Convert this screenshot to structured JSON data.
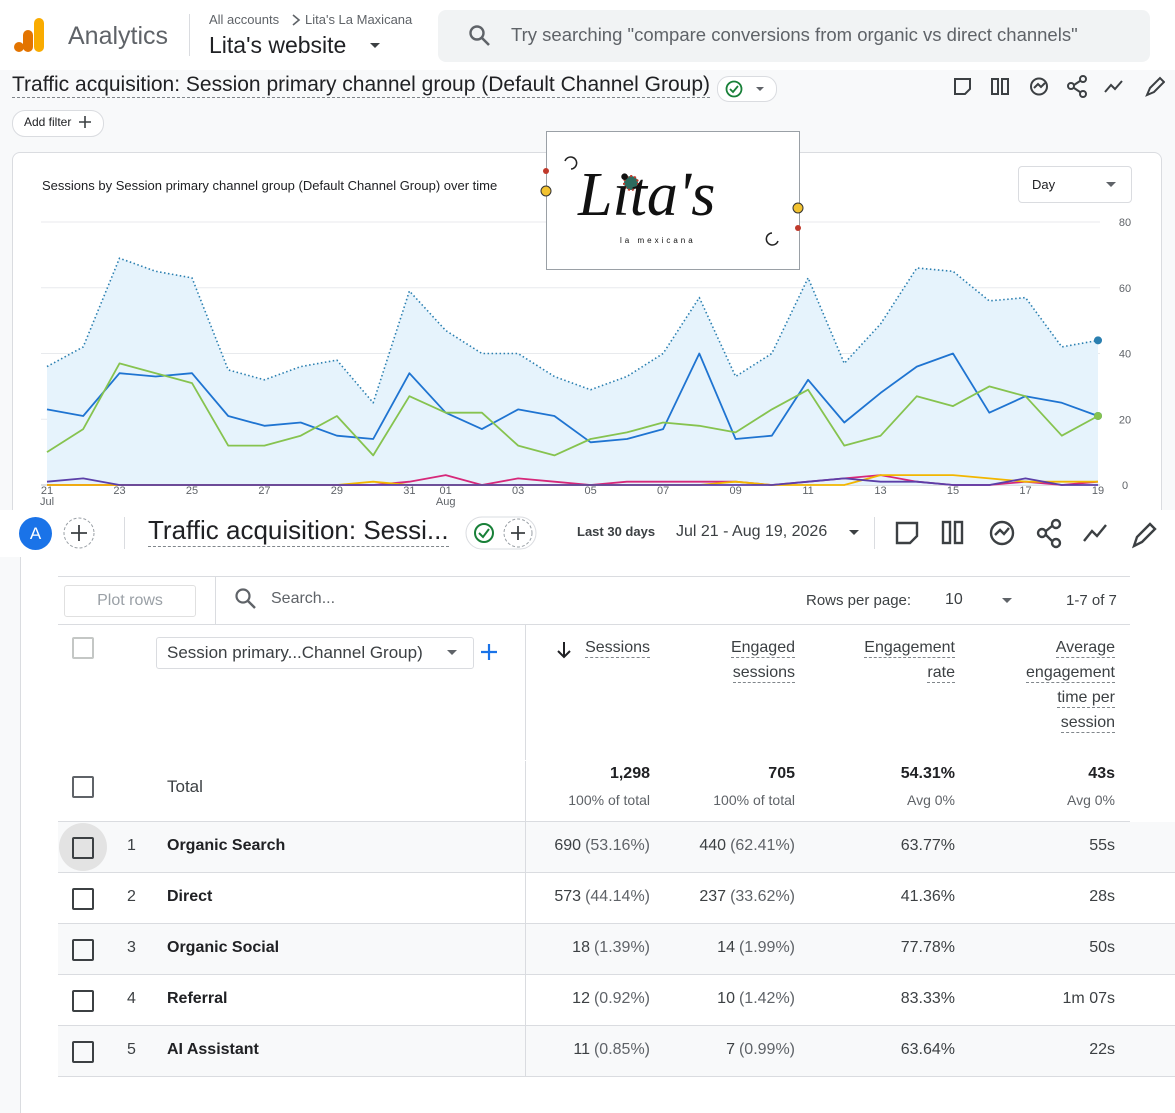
{
  "header": {
    "app_name": "Analytics",
    "breadcrumb": [
      "All accounts",
      "Lita's La Maxicana"
    ],
    "property": "Lita's website",
    "search_placeholder": "Try searching \"compare conversions from organic vs direct channels\""
  },
  "report": {
    "title": "Traffic acquisition: Session primary channel group (Default Channel Group)",
    "add_filter": "Add filter"
  },
  "chart_data": {
    "type": "line",
    "title": "Sessions by Session primary channel group (Default Channel Group) over time",
    "granularity": "Day",
    "logo": {
      "text": "Lita's",
      "subtext": "la mexicana"
    },
    "categories": [
      "21 Jul",
      null,
      "23",
      null,
      "25",
      null,
      "27",
      null,
      "29",
      null,
      "31",
      "01 Aug",
      null,
      "03",
      null,
      "05",
      null,
      "07",
      null,
      "09",
      null,
      "11",
      null,
      "13",
      null,
      "15",
      null,
      "17",
      null,
      "19"
    ],
    "ylim": [
      0,
      80
    ],
    "yticks": [
      0,
      20,
      40,
      60,
      80
    ],
    "grid": true,
    "series": [
      {
        "color": "#2a7fb0",
        "style": "dotted",
        "area": "#e6f3fc",
        "values": [
          36,
          42,
          69,
          65,
          63,
          35,
          32,
          36,
          38,
          25,
          59,
          47,
          40,
          40,
          33,
          29,
          33,
          40,
          57,
          33,
          40,
          63,
          37,
          49,
          66,
          65,
          56,
          57,
          42,
          44
        ]
      },
      {
        "color": "#1f74d1",
        "values": [
          23,
          21,
          34,
          33,
          34,
          21,
          18,
          19,
          15,
          14,
          34,
          22,
          17,
          23,
          21,
          13,
          14,
          17,
          40,
          14,
          15,
          32,
          19,
          28,
          36,
          40,
          22,
          27,
          25,
          21
        ]
      },
      {
        "color": "#86c34f",
        "values": [
          10,
          17,
          37,
          34,
          31,
          12,
          12,
          15,
          21,
          9,
          27,
          22,
          22,
          12,
          9,
          14,
          16,
          19,
          18,
          16,
          23,
          29,
          12,
          15,
          27,
          24,
          30,
          27,
          15,
          21
        ]
      },
      {
        "color": "#d6287a",
        "values": [
          0,
          0,
          0,
          0,
          0,
          0,
          0,
          0,
          0,
          0,
          1,
          3,
          0,
          2,
          1,
          0,
          1,
          1,
          1,
          1,
          0,
          1,
          2,
          3,
          1,
          0,
          0,
          1,
          0,
          1
        ]
      },
      {
        "color": "#f2b600",
        "values": [
          0,
          0,
          0,
          0,
          0,
          0,
          0,
          0,
          0,
          1,
          0,
          0,
          0,
          0,
          0,
          0,
          0,
          0,
          0,
          1,
          0,
          0,
          0,
          3,
          3,
          3,
          2,
          1,
          1,
          1
        ]
      },
      {
        "color": "#5b3fa8",
        "values": [
          1,
          2,
          0,
          0,
          0,
          0,
          0,
          0,
          0,
          0,
          0,
          0,
          0,
          0,
          0,
          0,
          0,
          0,
          0,
          0,
          0,
          1,
          2,
          1,
          1,
          0,
          0,
          2,
          0,
          0
        ]
      }
    ]
  },
  "toolbar": {
    "avatar": "A",
    "title": "Traffic acquisition: Sessi...",
    "date_preset": "Last 30 days",
    "date_range": "Jul 21 - Aug 19, 2026"
  },
  "table": {
    "plot_rows": "Plot rows",
    "search_placeholder": "Search...",
    "rows_per_page_label": "Rows per page:",
    "rows_per_page": "10",
    "pagination": "1-7 of 7",
    "dimension": "Session primary...Channel Group)",
    "columns": [
      [
        "Sessions"
      ],
      [
        "Engaged",
        "sessions"
      ],
      [
        "Engagement",
        "rate"
      ],
      [
        "Average",
        "engagement",
        "time per",
        "session"
      ]
    ],
    "total": {
      "label": "Total",
      "values": [
        "1,298",
        "705",
        "54.31%",
        "43s"
      ],
      "subs": [
        "100% of total",
        "100% of total",
        "Avg 0%",
        "Avg 0%"
      ]
    },
    "rows": [
      {
        "rank": "1",
        "channel": "Organic Search",
        "cells": [
          [
            "690",
            "(53.16%)"
          ],
          [
            "440",
            "(62.41%)"
          ],
          [
            "63.77%"
          ],
          [
            "55s"
          ]
        ]
      },
      {
        "rank": "2",
        "channel": "Direct",
        "cells": [
          [
            "573",
            "(44.14%)"
          ],
          [
            "237",
            "(33.62%)"
          ],
          [
            "41.36%"
          ],
          [
            "28s"
          ]
        ]
      },
      {
        "rank": "3",
        "channel": "Organic Social",
        "cells": [
          [
            "18",
            "(1.39%)"
          ],
          [
            "14",
            "(1.99%)"
          ],
          [
            "77.78%"
          ],
          [
            "50s"
          ]
        ]
      },
      {
        "rank": "4",
        "channel": "Referral",
        "cells": [
          [
            "12",
            "(0.92%)"
          ],
          [
            "10",
            "(1.42%)"
          ],
          [
            "83.33%"
          ],
          [
            "1m 07s"
          ]
        ]
      },
      {
        "rank": "5",
        "channel": "AI Assistant",
        "cells": [
          [
            "11",
            "(0.85%)"
          ],
          [
            "7",
            "(0.99%)"
          ],
          [
            "63.64%"
          ],
          [
            "22s"
          ]
        ]
      }
    ]
  }
}
